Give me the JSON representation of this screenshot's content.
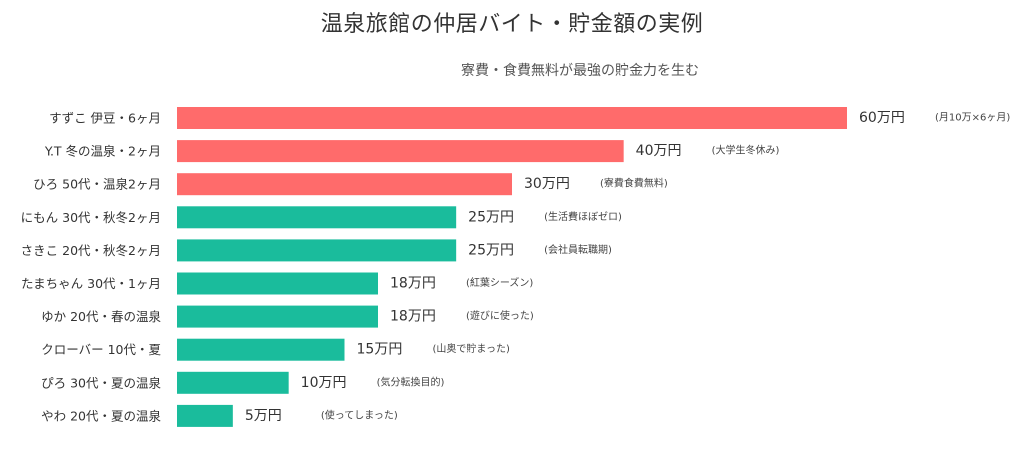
{
  "title": "温泉旅館の仲居バイト・貯金額の実例",
  "subtitle": "寮費・食費無料が最強の貯金力を生む",
  "colors": {
    "highlight": "#ff6b6b",
    "normal": "#1abc9c"
  },
  "chart_data": {
    "type": "bar",
    "orientation": "horizontal",
    "unit": "万円",
    "categories": [
      "すずこ 伊豆・6ヶ月",
      "Y.T 冬の温泉・2ヶ月",
      "ひろ 50代・温泉2ヶ月",
      "にもん 30代・秋冬2ヶ月",
      "さきこ 20代・秋冬2ヶ月",
      "たまちゃん 30代・1ヶ月",
      "ゆか 20代・春の温泉",
      "クローバー 10代・夏",
      "ぴろ 30代・夏の温泉",
      "やわ 20代・夏の温泉"
    ],
    "values": [
      60,
      40,
      30,
      25,
      25,
      18,
      18,
      15,
      10,
      5
    ],
    "value_labels": [
      "60万円",
      "40万円",
      "30万円",
      "25万円",
      "25万円",
      "18万円",
      "18万円",
      "15万円",
      "10万円",
      "5万円"
    ],
    "notes": [
      "(月10万×6ヶ月)",
      "(大学生冬休み)",
      "(寮費食費無料)",
      "(生活費ほぼゼロ)",
      "(会社員転職期)",
      "(紅葉シーズン)",
      "(遊びに使った)",
      "(山奥で貯まった)",
      "(気分転換目的)",
      "(使ってしまった)"
    ],
    "highlighted": [
      true,
      true,
      true,
      false,
      false,
      false,
      false,
      false,
      false,
      false
    ],
    "xlim": [
      0,
      60
    ],
    "grid": false,
    "legend": "none"
  }
}
